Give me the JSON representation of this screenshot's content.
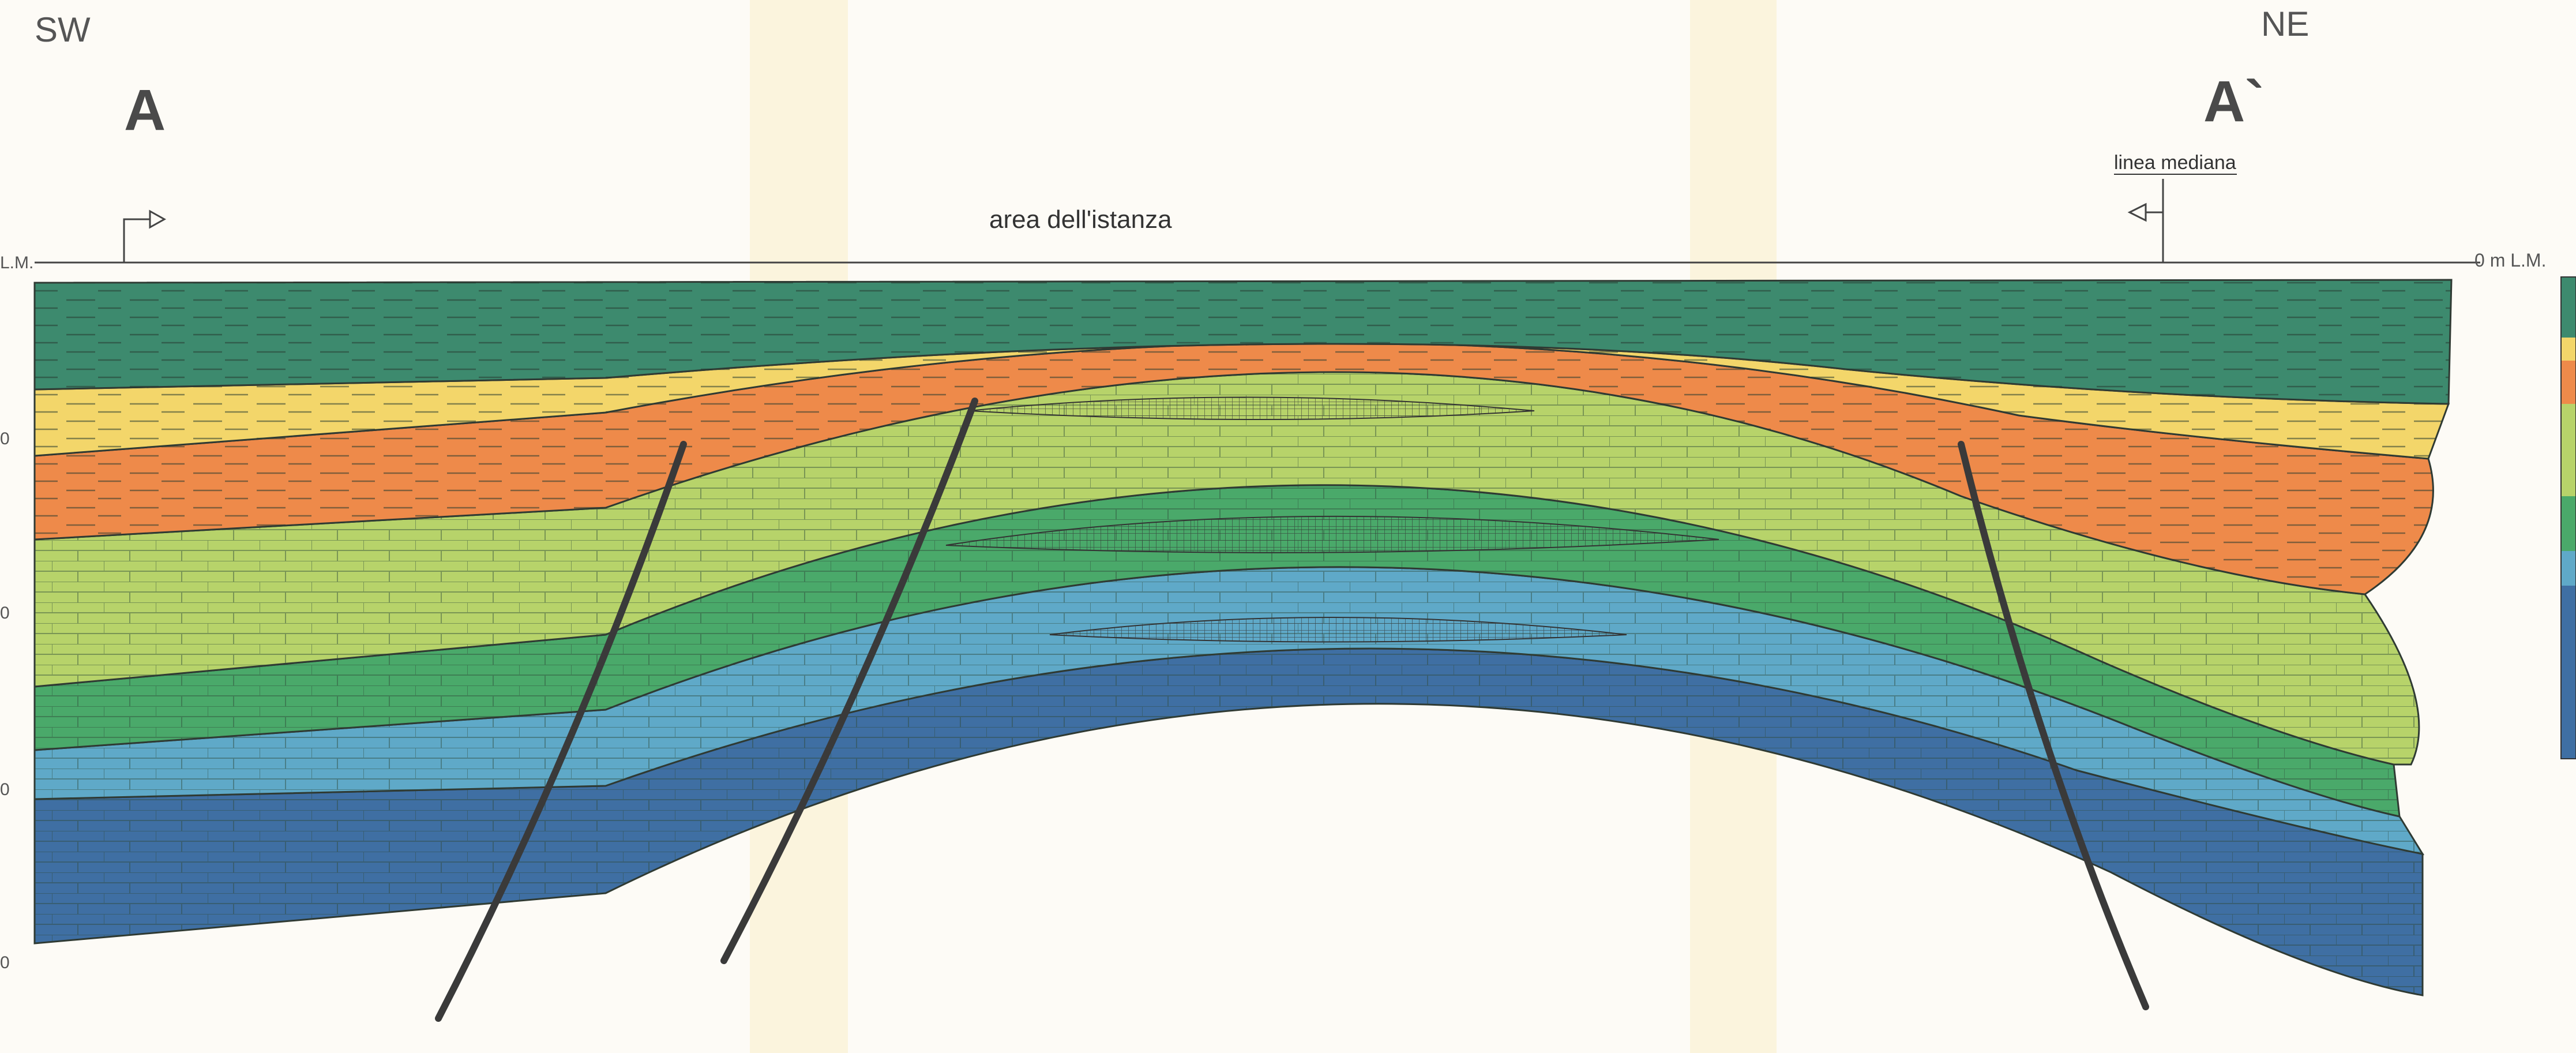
{
  "orientation": {
    "left": "SW",
    "right": "NE"
  },
  "section_ends": {
    "left": "A",
    "right": "A`"
  },
  "area_label": "area  dell'istanza",
  "median_line_label": "linea mediana",
  "datum": {
    "left": "L.M.",
    "right": "0 m L.M."
  },
  "depth_ticks": [
    "0",
    "0",
    "0",
    "0"
  ],
  "colors": {
    "unit1_dark_green": "#3d8a6e",
    "unit2_yellow": "#f3d66a",
    "unit3_orange": "#ee8a4a",
    "unit4_light_green": "#b7d36a",
    "unit5_green": "#4aa96a",
    "unit6_light_blue": "#5fa9c8",
    "unit7_dark_blue": "#3f6fa3",
    "fault": "#3a3a3a"
  }
}
